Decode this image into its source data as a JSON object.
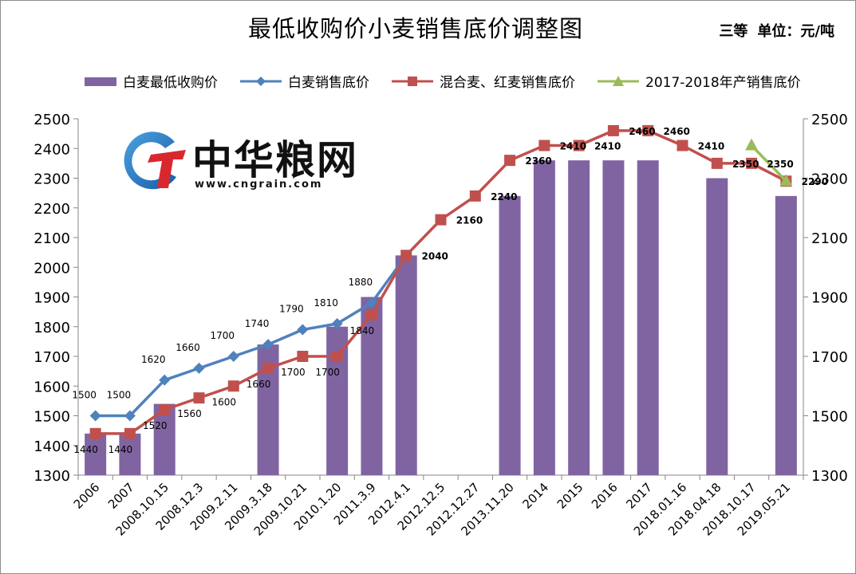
{
  "title": "最低收购价小麦销售底价调整图",
  "unit_text": {
    "grade": "三等",
    "unit": "单位：元/吨"
  },
  "watermark": {
    "name": "中华粮网",
    "url": "www.cngrain.com"
  },
  "colors": {
    "bar": "#8064a2",
    "white_line": "#4f81bd",
    "mixed_line": "#c0504d",
    "new_line": "#9bbb59",
    "axis": "#868686"
  },
  "chart_data": {
    "type": "bar",
    "title": "最低收购价小麦销售底价调整图",
    "categories": [
      "2006",
      "2007",
      "2008.10.15",
      "2008.12.3",
      "2009.2.11",
      "2009.3.18",
      "2009.10.21",
      "2010.1.20",
      "2011.3.9",
      "2012.4.1",
      "2012.12.5",
      "2012.12.27",
      "2013.11.20",
      "2014",
      "2015",
      "2016",
      "2017",
      "2018.01.16",
      "2018.04.18",
      "2018.10.17",
      "2019.05.21"
    ],
    "ylim": [
      1300,
      2500
    ],
    "yticks": [
      1300,
      1400,
      1500,
      1600,
      1700,
      1800,
      1900,
      2000,
      2100,
      2200,
      2300,
      2400,
      2500
    ],
    "y2ticks": [
      1300,
      1500,
      1700,
      1900,
      2100,
      2300,
      2500
    ],
    "grid": false,
    "legend_position": "top",
    "series": [
      {
        "name": "白麦最低收购价",
        "type": "bar",
        "values": [
          1440,
          1440,
          1540,
          null,
          null,
          1740,
          null,
          1800,
          1900,
          2040,
          null,
          null,
          2240,
          2360,
          2360,
          2360,
          2360,
          null,
          2300,
          null,
          2240
        ]
      },
      {
        "name": "白麦销售底价",
        "type": "line",
        "marker": "diamond",
        "values": [
          1500,
          1500,
          1620,
          1660,
          1700,
          1740,
          1790,
          1810,
          1880,
          2040,
          null,
          null,
          null,
          null,
          null,
          null,
          null,
          null,
          null,
          null,
          null
        ],
        "labels": [
          "1500",
          "1500",
          "1620",
          "1660",
          "1700",
          "1740",
          "1790",
          "1810",
          "1880",
          "",
          "",
          "",
          "",
          "",
          "",
          "",
          "",
          "",
          "",
          "",
          ""
        ]
      },
      {
        "name": "混合麦、红麦销售底价",
        "type": "line",
        "marker": "square",
        "values": [
          1440,
          1440,
          1520,
          1560,
          1600,
          1660,
          1700,
          1700,
          1840,
          2040,
          2160,
          2240,
          2360,
          2410,
          2410,
          2460,
          2460,
          2410,
          2350,
          2350,
          2290
        ],
        "labels": [
          "1440",
          "1440",
          "1520",
          "1560",
          "1600",
          "1660",
          "1700",
          "1700",
          "1840",
          "2040",
          "2160",
          "2240",
          "2360",
          "2410",
          "2410",
          "2460",
          "2460",
          "2410",
          "2350",
          "2350",
          "2290"
        ]
      },
      {
        "name": "2017-2018年产销售底价",
        "type": "line",
        "marker": "triangle",
        "values": [
          null,
          null,
          null,
          null,
          null,
          null,
          null,
          null,
          null,
          null,
          null,
          null,
          null,
          null,
          null,
          null,
          null,
          null,
          null,
          2410,
          2290
        ]
      }
    ]
  }
}
